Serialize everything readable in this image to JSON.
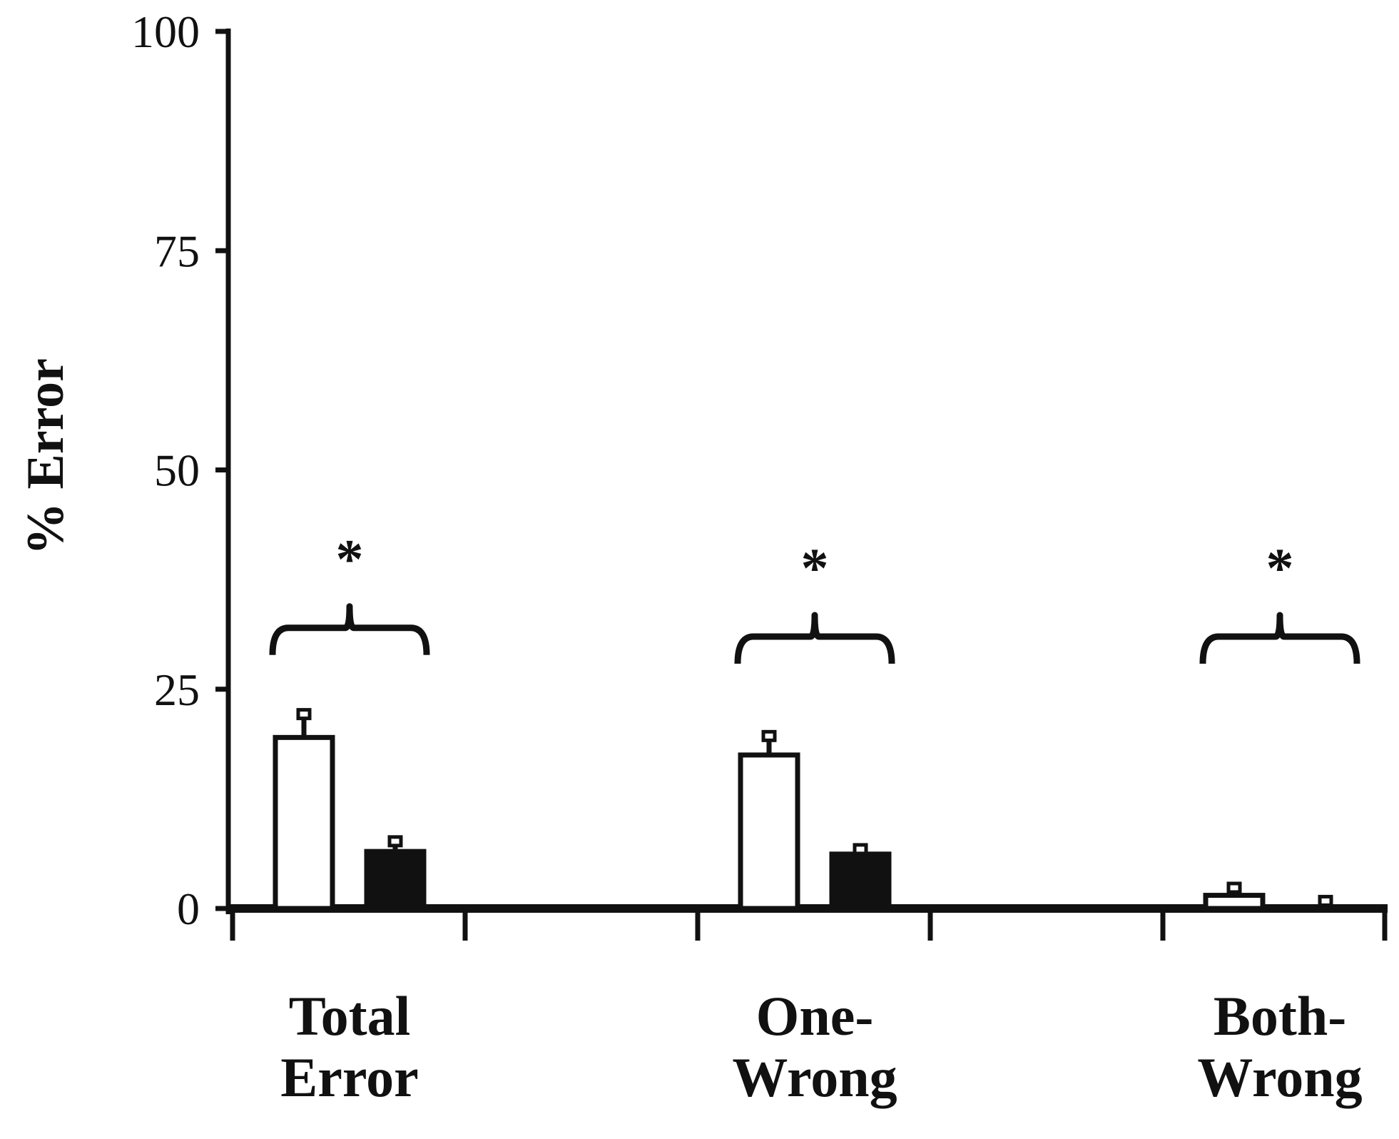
{
  "chart_data": {
    "type": "bar",
    "title": "",
    "xlabel": "",
    "ylabel": "% Error",
    "ylim": [
      0,
      100
    ],
    "yticks": [
      "0",
      "25",
      "50",
      "75",
      "100"
    ],
    "grid": false,
    "categories": [
      [
        "Total",
        "Error"
      ],
      [
        "One-",
        "Wrong"
      ],
      [
        "Both-",
        "Wrong"
      ]
    ],
    "series": [
      {
        "values": [
          19.5,
          17.5,
          1.5
        ],
        "errors": [
          2.5,
          2.0,
          0.7
        ],
        "fill": "#ffffff"
      },
      {
        "values": [
          6.5,
          6.2,
          0.2
        ],
        "errors": [
          1.0,
          0.4,
          0.5
        ],
        "fill": "#111111"
      }
    ],
    "significance": [
      {
        "category": 0,
        "label": "*",
        "level": 32
      },
      {
        "category": 1,
        "label": "*",
        "level": 31
      },
      {
        "category": 2,
        "label": "*",
        "level": 31
      }
    ]
  }
}
